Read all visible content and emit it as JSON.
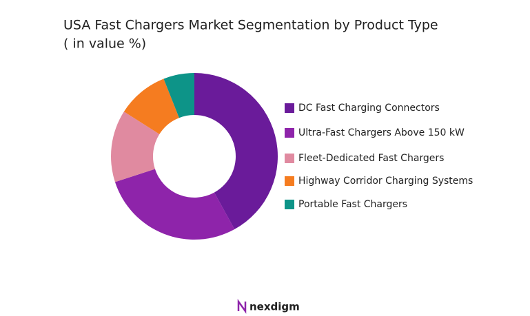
{
  "chart_data": {
    "type": "donut",
    "title": "USA Fast Chargers Market Segmentation by Product Type",
    "subtitle": "( in value %)",
    "categories": [
      "DC Fast Charging Connectors",
      "Ultra-Fast Chargers Above 150 kW",
      "Fleet-Dedicated Fast Chargers",
      "Highway Corridor Charging Systems",
      "Portable Fast Chargers"
    ],
    "values": [
      42,
      28,
      14,
      10,
      6
    ],
    "colors": [
      "#6a1b9a",
      "#8e24aa",
      "#e08aa0",
      "#f57c20",
      "#0d9488"
    ],
    "legend": "right"
  },
  "logo": "nexdigm"
}
